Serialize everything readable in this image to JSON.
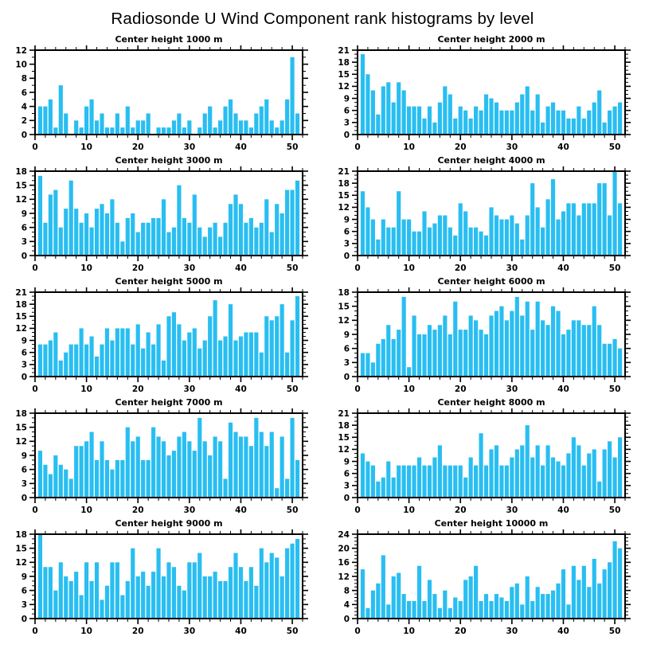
{
  "chart_data": {
    "type": "bar",
    "title": "Radiosonde U Wind Component rank histograms by level",
    "layout": {
      "rows": 5,
      "cols": 2,
      "grid": false,
      "legend": "none",
      "style": "outward-ticks-mirrored"
    },
    "bar_color": "#29BEF1",
    "axis_color": "#000000",
    "background": "#FFFFFF",
    "n_bins": 51,
    "xlim": [
      0,
      52
    ],
    "xticks": [
      0,
      10,
      20,
      30,
      40,
      50
    ],
    "x_minor_step": 2,
    "y_minor_step": 1,
    "xlabel": "",
    "ylabel": "",
    "plots": [
      {
        "title": "Center height 1000 m",
        "ylim": [
          0,
          12
        ],
        "ytick_step": 2,
        "values": [
          4,
          4,
          5,
          1,
          7,
          3,
          0,
          2,
          1,
          4,
          5,
          2,
          3,
          1,
          1,
          3,
          1,
          4,
          1,
          2,
          2,
          3,
          0,
          1,
          1,
          1,
          2,
          3,
          1,
          2,
          0,
          1,
          3,
          4,
          1,
          2,
          4,
          5,
          3,
          2,
          2,
          1,
          3,
          4,
          5,
          2,
          1,
          2,
          5,
          11,
          3
        ]
      },
      {
        "title": "Center height 2000 m",
        "ylim": [
          0,
          21
        ],
        "ytick_step": 3,
        "values": [
          20,
          15,
          11,
          5,
          12,
          13,
          8,
          13,
          11,
          7,
          7,
          7,
          4,
          7,
          3,
          8,
          12,
          10,
          4,
          7,
          6,
          4,
          7,
          6,
          10,
          9,
          8,
          6,
          6,
          6,
          8,
          10,
          12,
          6,
          10,
          3,
          7,
          8,
          6,
          6,
          4,
          4,
          7,
          4,
          6,
          8,
          11,
          3,
          6,
          7,
          8
        ]
      },
      {
        "title": "Center height 3000 m",
        "ylim": [
          0,
          18
        ],
        "ytick_step": 3,
        "values": [
          17,
          7,
          13,
          14,
          6,
          10,
          16,
          10,
          7,
          9,
          6,
          10,
          11,
          9,
          12,
          7,
          3,
          8,
          9,
          5,
          7,
          7,
          8,
          8,
          12,
          5,
          6,
          15,
          8,
          7,
          13,
          6,
          4,
          6,
          7,
          4,
          7,
          11,
          13,
          11,
          7,
          8,
          6,
          7,
          12,
          5,
          11,
          9,
          14,
          14,
          16
        ]
      },
      {
        "title": "Center height 4000 m",
        "ylim": [
          0,
          21
        ],
        "ytick_step": 3,
        "values": [
          16,
          12,
          9,
          4,
          9,
          7,
          7,
          16,
          9,
          9,
          6,
          6,
          11,
          7,
          8,
          10,
          10,
          7,
          5,
          13,
          11,
          7,
          7,
          6,
          5,
          12,
          10,
          9,
          9,
          10,
          8,
          4,
          10,
          18,
          12,
          7,
          14,
          19,
          9,
          11,
          13,
          13,
          10,
          13,
          13,
          13,
          18,
          18,
          10,
          21,
          13
        ]
      },
      {
        "title": "Center height 5000 m",
        "ylim": [
          0,
          21
        ],
        "ytick_step": 3,
        "values": [
          8,
          8,
          9,
          11,
          4,
          6,
          8,
          8,
          12,
          8,
          10,
          5,
          8,
          12,
          9,
          12,
          12,
          12,
          8,
          13,
          7,
          11,
          8,
          13,
          4,
          15,
          16,
          13,
          9,
          11,
          12,
          7,
          9,
          15,
          19,
          9,
          10,
          18,
          9,
          10,
          11,
          11,
          11,
          6,
          15,
          14,
          15,
          18,
          6,
          14,
          20
        ]
      },
      {
        "title": "Center height 6000 m",
        "ylim": [
          0,
          18
        ],
        "ytick_step": 3,
        "values": [
          5,
          5,
          3,
          7,
          8,
          11,
          8,
          10,
          17,
          2,
          13,
          9,
          9,
          11,
          10,
          11,
          13,
          9,
          16,
          10,
          10,
          13,
          12,
          10,
          9,
          13,
          14,
          15,
          12,
          14,
          17,
          13,
          16,
          10,
          16,
          12,
          11,
          15,
          14,
          9,
          10,
          12,
          12,
          11,
          11,
          15,
          11,
          7,
          7,
          8,
          6
        ]
      },
      {
        "title": "Center height 7000 m",
        "ylim": [
          0,
          18
        ],
        "ytick_step": 3,
        "values": [
          10,
          7,
          5,
          9,
          7,
          6,
          4,
          11,
          11,
          12,
          14,
          8,
          12,
          8,
          6,
          8,
          8,
          15,
          12,
          13,
          8,
          8,
          15,
          13,
          12,
          9,
          10,
          13,
          14,
          12,
          10,
          17,
          12,
          9,
          13,
          12,
          4,
          16,
          14,
          13,
          13,
          11,
          17,
          14,
          11,
          14,
          2,
          13,
          4,
          17,
          8
        ]
      },
      {
        "title": "Center height 8000 m",
        "ylim": [
          0,
          21
        ],
        "ytick_step": 3,
        "values": [
          11,
          9,
          8,
          4,
          5,
          9,
          5,
          8,
          8,
          8,
          8,
          10,
          8,
          8,
          10,
          13,
          8,
          8,
          8,
          8,
          5,
          10,
          8,
          16,
          8,
          12,
          13,
          8,
          8,
          10,
          12,
          13,
          18,
          10,
          13,
          8,
          13,
          10,
          9,
          8,
          11,
          15,
          13,
          8,
          11,
          12,
          4,
          12,
          14,
          10,
          15
        ]
      },
      {
        "title": "Center height 9000 m",
        "ylim": [
          0,
          18
        ],
        "ytick_step": 3,
        "values": [
          18,
          11,
          11,
          6,
          12,
          9,
          8,
          10,
          5,
          12,
          8,
          12,
          4,
          7,
          12,
          12,
          5,
          8,
          15,
          9,
          10,
          7,
          10,
          15,
          9,
          12,
          11,
          7,
          6,
          12,
          12,
          14,
          9,
          9,
          10,
          8,
          8,
          11,
          14,
          11,
          8,
          11,
          7,
          15,
          12,
          14,
          13,
          9,
          15,
          16,
          17
        ]
      },
      {
        "title": "Center height 10000 m",
        "ylim": [
          0,
          24
        ],
        "ytick_step": 4,
        "values": [
          14,
          3,
          8,
          10,
          18,
          4,
          12,
          13,
          7,
          5,
          5,
          15,
          5,
          11,
          7,
          3,
          8,
          3,
          6,
          5,
          11,
          12,
          15,
          5,
          7,
          5,
          7,
          6,
          5,
          9,
          10,
          4,
          12,
          5,
          9,
          7,
          7,
          8,
          10,
          14,
          4,
          15,
          11,
          15,
          9,
          17,
          10,
          14,
          16,
          22,
          20
        ]
      }
    ]
  }
}
